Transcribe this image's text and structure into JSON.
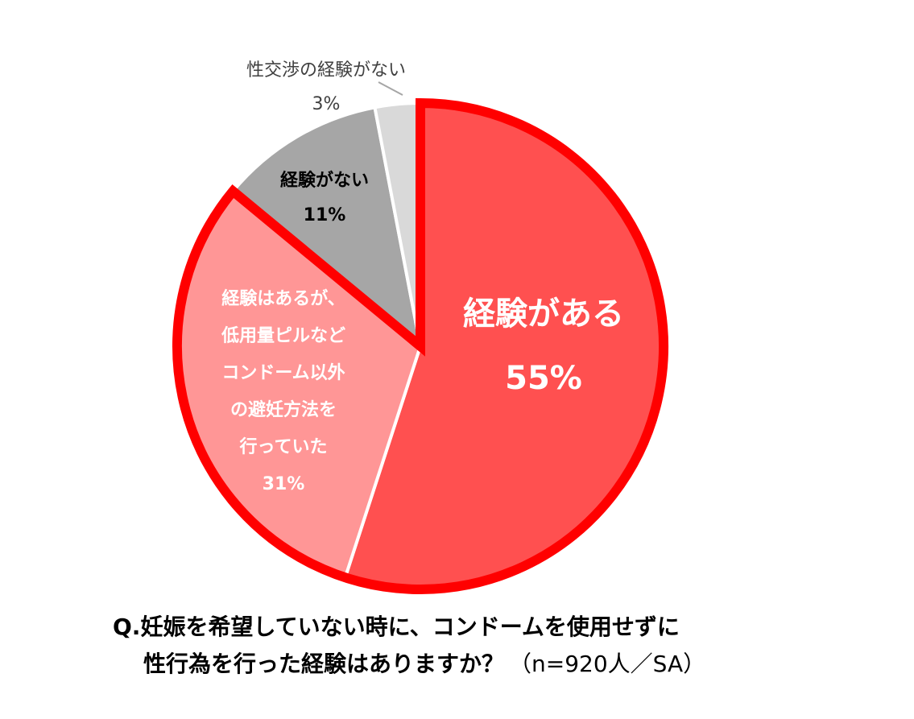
{
  "chart_data": {
    "type": "pie",
    "categories": [
      [
        "経験がある"
      ],
      [
        "経験はあるが、",
        "低用量ピルなど",
        "コンドーム以外",
        "の避妊方法を",
        "行っていた"
      ],
      [
        "経験がない"
      ],
      [
        "性交渉の経験がない"
      ]
    ],
    "values": [
      55,
      31,
      11,
      3
    ],
    "value_labels": [
      "55%",
      "31%",
      "11%",
      "3%"
    ],
    "colors": [
      "#ff5050",
      "#ff9696",
      "#a6a6a6",
      "#d9d9d9"
    ],
    "outline_color": "#ff0000",
    "title": [
      "Q.妊娠を希望していない時に、コンドームを使用せずに",
      "性行為を行った経験はありますか？"
    ],
    "note": "（n=920人／SA）"
  }
}
